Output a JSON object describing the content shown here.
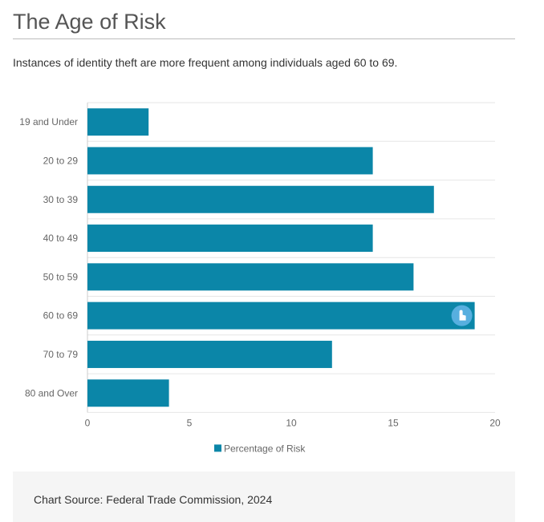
{
  "header": {
    "title": "The Age of Risk",
    "subtitle": "Instances of identity theft are more frequent among individuals aged 60 to 69."
  },
  "footer": {
    "source": "Chart Source: Federal Trade Commission, 2024"
  },
  "colors": {
    "bar": "#0b86a8",
    "grid": "#e6e6e6",
    "hover_marker": "#5fb4e4"
  },
  "chart_data": {
    "type": "bar",
    "orientation": "horizontal",
    "categories": [
      "19 and Under",
      "20 to 29",
      "30 to 39",
      "40 to 49",
      "50 to 59",
      "60 to 69",
      "70 to 79",
      "80 and Over"
    ],
    "series": [
      {
        "name": "Percentage of Risk",
        "values": [
          3,
          14,
          17,
          14,
          16,
          19,
          12,
          4
        ]
      }
    ],
    "xlim": [
      0,
      20
    ],
    "xticks": [
      "0",
      "5",
      "10",
      "15",
      "20"
    ],
    "grid": true,
    "legend": "bottom-center",
    "hover_marker_category": "60 to 69",
    "hover_marker_icon": "hand-pointer-icon"
  }
}
